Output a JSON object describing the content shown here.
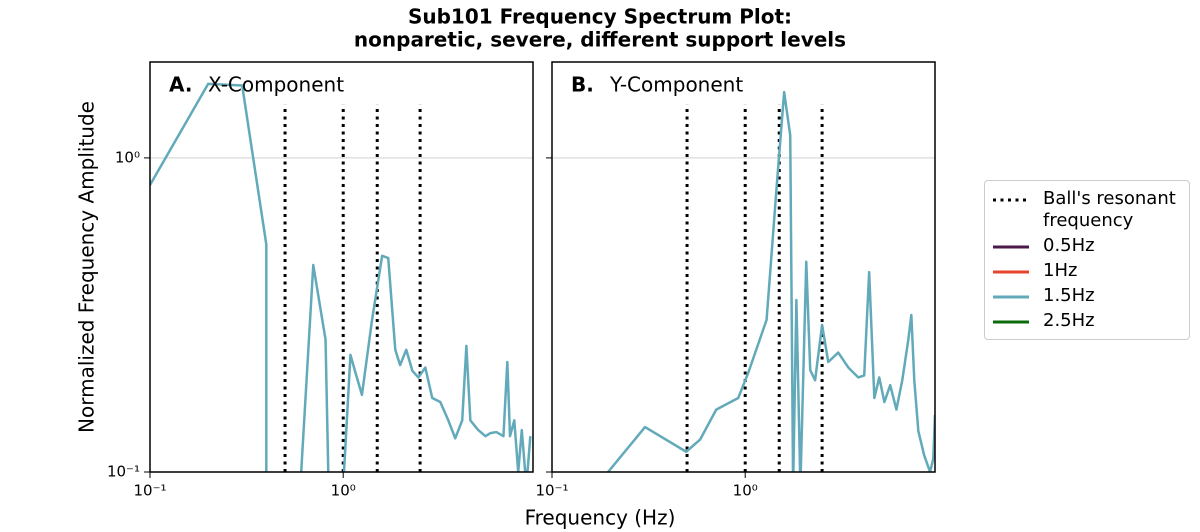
{
  "title": [
    "Sub101 Frequency Spectrum Plot:",
    "nonparetic, severe, different support levels"
  ],
  "xlabel": "Frequency (Hz)",
  "ylabel": "Normalized Frequency Amplitude",
  "legend": {
    "entries": [
      {
        "name": "Ball's resonant frequency",
        "color": "#000000",
        "style": "dotted"
      },
      {
        "name": "0.5Hz",
        "color": "#4b1a4a",
        "style": "solid"
      },
      {
        "name": "1Hz",
        "color": "#e8432e",
        "style": "solid"
      },
      {
        "name": "1.5Hz",
        "color": "#62aab9",
        "style": "solid"
      },
      {
        "name": "2.5Hz",
        "color": "#0b6b0b",
        "style": "solid"
      }
    ]
  },
  "chart_data": [
    {
      "type": "line",
      "panel_label": "A.",
      "title": "X-Component",
      "xscale": "log",
      "yscale": "log",
      "xlim": [
        0.1,
        9.6
      ],
      "ylim": [
        0.1,
        2.02
      ],
      "xticks": [
        {
          "value": 0.1,
          "label": "10⁻¹"
        },
        {
          "value": 1,
          "label": "10⁰"
        }
      ],
      "yticks": [
        {
          "value": 0.1,
          "label": "10⁻¹"
        },
        {
          "value": 1,
          "label": "10⁰"
        }
      ],
      "grid": true,
      "x": [
        0.1,
        0.2,
        0.3,
        0.4,
        0.4,
        0.6,
        0.7,
        0.81,
        0.84,
        1.0,
        1.09,
        1.15,
        1.25,
        1.41,
        1.59,
        1.71,
        1.86,
        1.97,
        2.12,
        2.28,
        2.45,
        2.66,
        2.89,
        3.18,
        3.5,
        3.8,
        4.13,
        4.34,
        4.55,
        5.0,
        5.45,
        5.78,
        6.2,
        6.75,
        7.07,
        7.3,
        7.68,
        8.05,
        8.4,
        8.87,
        9.3
      ],
      "series": [
        {
          "color": "#62aab9",
          "values": [
            0.82,
            1.72,
            1.7,
            0.53,
            0.09,
            0.09,
            0.456,
            0.264,
            0.09,
            0.09,
            0.236,
            0.21,
            0.176,
            0.305,
            0.488,
            0.48,
            0.245,
            0.219,
            0.245,
            0.21,
            0.2,
            0.215,
            0.172,
            0.167,
            0.146,
            0.128,
            0.146,
            0.252,
            0.146,
            0.136,
            0.13,
            0.133,
            0.134,
            0.13,
            0.224,
            0.13,
            0.146,
            0.1,
            0.136,
            0.09,
            0.13
          ]
        }
      ],
      "vlines": {
        "x": [
          0.5,
          1,
          1.5,
          2.5
        ],
        "ymax": 1.48,
        "color": "#000000"
      }
    },
    {
      "type": "line",
      "panel_label": "B.",
      "title": "Y-Component",
      "xscale": "log",
      "yscale": "log",
      "xlim": [
        0.1,
        9.6
      ],
      "ylim": [
        0.1,
        2.02
      ],
      "xticks": [
        {
          "value": 0.1,
          "label": "10⁻¹"
        },
        {
          "value": 1,
          "label": "10⁰"
        }
      ],
      "yticks": [
        0.1,
        1
      ],
      "show_ytick_labels": false,
      "grid": true,
      "x": [
        0.195,
        0.303,
        0.495,
        0.585,
        0.708,
        0.92,
        1.04,
        1.29,
        1.45,
        1.59,
        1.71,
        1.77,
        1.84,
        1.93,
        2.07,
        2.17,
        2.3,
        2.5,
        2.69,
        3.03,
        3.42,
        3.85,
        4.13,
        4.38,
        4.66,
        4.94,
        5.25,
        5.63,
        6.06,
        6.5,
        6.98,
        7.24,
        7.5,
        7.87,
        8.44,
        9.05,
        9.4,
        9.6
      ],
      "series": [
        {
          "color": "#62aab9",
          "values": [
            0.1,
            0.139,
            0.116,
            0.127,
            0.158,
            0.172,
            0.208,
            0.305,
            0.79,
            1.62,
            1.18,
            0.09,
            0.353,
            0.09,
            0.467,
            0.211,
            0.196,
            0.294,
            0.224,
            0.24,
            0.215,
            0.2,
            0.203,
            0.433,
            0.172,
            0.2,
            0.167,
            0.189,
            0.158,
            0.196,
            0.263,
            0.316,
            0.196,
            0.135,
            0.113,
            0.1,
            0.11,
            0.152
          ]
        }
      ],
      "vlines": {
        "x": [
          0.5,
          1,
          1.5,
          2.5
        ],
        "ymax": 1.48,
        "color": "#000000"
      }
    }
  ]
}
